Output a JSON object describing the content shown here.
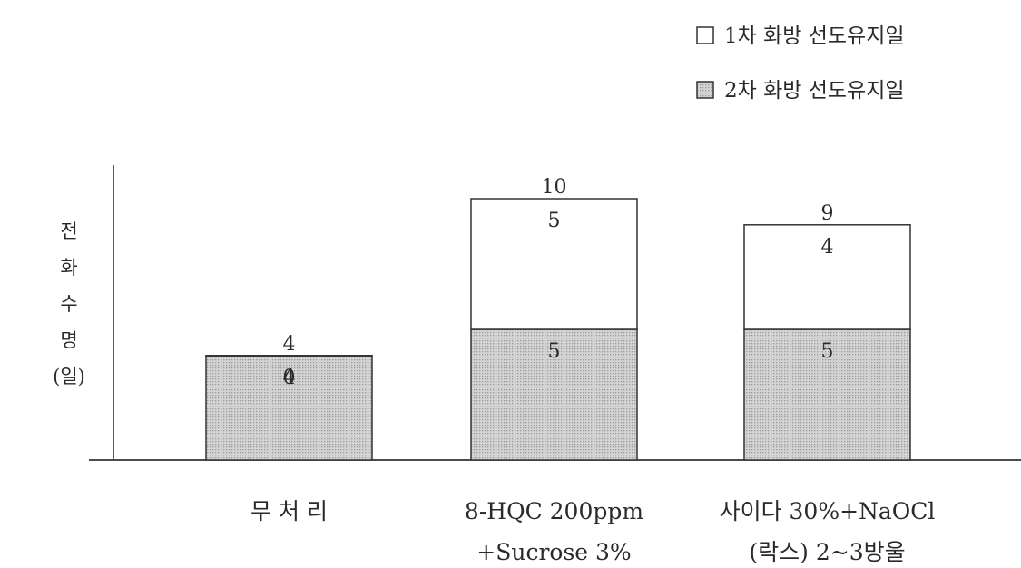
{
  "chart_data": {
    "type": "bar",
    "stacked": true,
    "ylabel": "전\n화\n수\n명\n(일)",
    "categories": [
      [
        "무 처 리"
      ],
      [
        "8-HQC 200ppm",
        "+Sucrose 3%"
      ],
      [
        "사이다 30%+NaOCl",
        "(락스) 2~3방울"
      ]
    ],
    "series": [
      {
        "name": "2차 화방 선도유지일",
        "values": [
          4,
          5,
          5
        ],
        "fill": "dotted-gray"
      },
      {
        "name": "1차 화방 선도유지일",
        "values": [
          0,
          5,
          4
        ],
        "fill": "white"
      }
    ],
    "totals": [
      4,
      10,
      9
    ],
    "legend_position": "top-right",
    "grid": false,
    "ylim": [
      0,
      14
    ]
  }
}
